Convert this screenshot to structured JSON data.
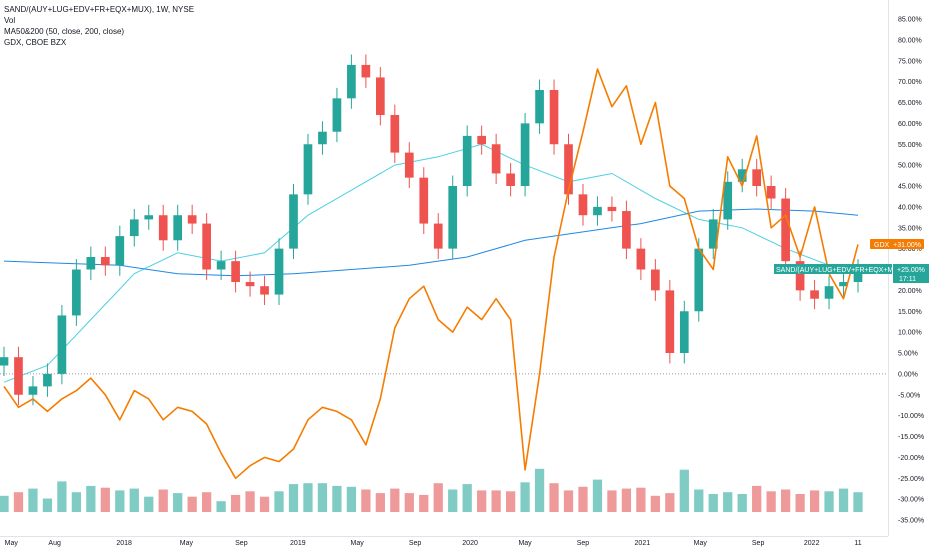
{
  "legend": {
    "symbol_line": "SAND/(AUY+LUG+EDV+FR+EQX+MUX), 1W, NYSE",
    "vol": "Vol",
    "ma": "MA50&200 (50, close, 200, close)",
    "compare": "GDX, CBOE BZX"
  },
  "chart_data": {
    "type": "line",
    "yaxis_unit": "percent",
    "ylim": [
      -37,
      88
    ],
    "y_ticks": [
      85,
      80,
      75,
      70,
      65,
      60,
      55,
      50,
      45,
      40,
      35,
      30,
      25,
      20,
      15,
      10,
      5,
      0,
      -5,
      -10,
      -15,
      -20,
      -25,
      -30,
      -35
    ],
    "y_tick_labels": [
      "85.00%",
      "80.00%",
      "75.00%",
      "70.00%",
      "65.00%",
      "60.00%",
      "55.00%",
      "50.00%",
      "45.00%",
      "40.00%",
      "35.00%",
      "30.00%",
      "25.00%",
      "20.00%",
      "15.00%",
      "10.00%",
      "5.00%",
      "0.00%",
      "-5.00%",
      "-10.00%",
      "-15.00%",
      "-20.00%",
      "-25.00%",
      "-30.00%",
      "-35.00%"
    ],
    "x_ticks": [
      "May",
      "Aug",
      "2018",
      "May",
      "Sep",
      "2019",
      "May",
      "Sep",
      "2020",
      "May",
      "Sep",
      "2021",
      "May",
      "Sep",
      "2022",
      "11"
    ],
    "x_tick_t": [
      0.5,
      3.5,
      8.3,
      12.6,
      16.4,
      20.3,
      24.4,
      28.4,
      32.2,
      36.0,
      40.0,
      44.1,
      48.1,
      52.1,
      55.8,
      59.0
    ],
    "series": [
      {
        "name": "SAND/(AUY+LUG+EDV+FR+EQX+MUX)",
        "style": "candles",
        "up_color": "#26a69a",
        "down_color": "#ef5350",
        "points": [
          [
            0,
            4
          ],
          [
            1,
            -5
          ],
          [
            2,
            -3
          ],
          [
            3,
            0
          ],
          [
            4,
            14
          ],
          [
            5,
            25
          ],
          [
            6,
            28
          ],
          [
            7,
            26
          ],
          [
            8,
            33
          ],
          [
            9,
            37
          ],
          [
            10,
            38
          ],
          [
            11,
            32
          ],
          [
            12,
            38
          ],
          [
            13,
            36
          ],
          [
            14,
            25
          ],
          [
            15,
            27
          ],
          [
            16,
            22
          ],
          [
            17,
            21
          ],
          [
            18,
            19
          ],
          [
            19,
            30
          ],
          [
            20,
            43
          ],
          [
            21,
            55
          ],
          [
            22,
            58
          ],
          [
            23,
            66
          ],
          [
            24,
            74
          ],
          [
            25,
            71
          ],
          [
            26,
            62
          ],
          [
            27,
            53
          ],
          [
            28,
            47
          ],
          [
            29,
            36
          ],
          [
            30,
            30
          ],
          [
            31,
            45
          ],
          [
            32,
            57
          ],
          [
            33,
            55
          ],
          [
            34,
            48
          ],
          [
            35,
            45
          ],
          [
            36,
            60
          ],
          [
            37,
            68
          ],
          [
            38,
            55
          ],
          [
            39,
            43
          ],
          [
            40,
            38
          ],
          [
            41,
            40
          ],
          [
            42,
            39
          ],
          [
            43,
            30
          ],
          [
            44,
            25
          ],
          [
            45,
            20
          ],
          [
            46,
            5
          ],
          [
            47,
            15
          ],
          [
            48,
            30
          ],
          [
            49,
            37
          ],
          [
            50,
            46
          ],
          [
            51,
            49
          ],
          [
            52,
            45
          ],
          [
            53,
            42
          ],
          [
            54,
            27
          ],
          [
            55,
            20
          ],
          [
            56,
            18
          ],
          [
            57,
            21
          ],
          [
            58,
            22
          ],
          [
            59,
            25
          ]
        ]
      },
      {
        "name": "GDX",
        "color": "#f57c00",
        "points": [
          [
            0,
            -3
          ],
          [
            1,
            -8
          ],
          [
            2,
            -6
          ],
          [
            3,
            -9
          ],
          [
            4,
            -6
          ],
          [
            5,
            -4
          ],
          [
            6,
            -1
          ],
          [
            7,
            -5
          ],
          [
            8,
            -11
          ],
          [
            9,
            -4
          ],
          [
            10,
            -6
          ],
          [
            11,
            -11
          ],
          [
            12,
            -8
          ],
          [
            13,
            -9
          ],
          [
            14,
            -12
          ],
          [
            15,
            -19
          ],
          [
            16,
            -25
          ],
          [
            17,
            -22
          ],
          [
            18,
            -20
          ],
          [
            19,
            -21
          ],
          [
            20,
            -18
          ],
          [
            21,
            -11
          ],
          [
            22,
            -8
          ],
          [
            23,
            -9
          ],
          [
            24,
            -11
          ],
          [
            25,
            -17
          ],
          [
            26,
            -6
          ],
          [
            27,
            11
          ],
          [
            28,
            18
          ],
          [
            29,
            21
          ],
          [
            30,
            13
          ],
          [
            31,
            10
          ],
          [
            32,
            16
          ],
          [
            33,
            13
          ],
          [
            34,
            18
          ],
          [
            35,
            13
          ],
          [
            36,
            -23
          ],
          [
            37,
            0
          ],
          [
            38,
            28
          ],
          [
            39,
            44
          ],
          [
            40,
            58
          ],
          [
            41,
            73
          ],
          [
            42,
            64
          ],
          [
            43,
            69
          ],
          [
            44,
            55
          ],
          [
            45,
            65
          ],
          [
            46,
            45
          ],
          [
            47,
            42
          ],
          [
            48,
            30
          ],
          [
            49,
            25
          ],
          [
            50,
            52
          ],
          [
            51,
            45
          ],
          [
            52,
            57
          ],
          [
            53,
            35
          ],
          [
            54,
            38
          ],
          [
            55,
            28
          ],
          [
            56,
            40
          ],
          [
            57,
            24
          ],
          [
            58,
            18
          ],
          [
            59,
            31
          ]
        ]
      },
      {
        "name": "MA50",
        "color": "#4dd0e1",
        "points": [
          [
            0,
            -2
          ],
          [
            3,
            2
          ],
          [
            6,
            13
          ],
          [
            9,
            24
          ],
          [
            12,
            29
          ],
          [
            15,
            27
          ],
          [
            18,
            29
          ],
          [
            21,
            38
          ],
          [
            24,
            44
          ],
          [
            27,
            50
          ],
          [
            30,
            52
          ],
          [
            33,
            55
          ],
          [
            36,
            50
          ],
          [
            39,
            46
          ],
          [
            42,
            48
          ],
          [
            45,
            42
          ],
          [
            48,
            37
          ],
          [
            51,
            35
          ],
          [
            54,
            30
          ],
          [
            57,
            26
          ],
          [
            59,
            25
          ]
        ]
      },
      {
        "name": "MA200",
        "color": "#1e88e5",
        "points": [
          [
            0,
            27
          ],
          [
            4,
            26.5
          ],
          [
            8,
            26
          ],
          [
            12,
            24
          ],
          [
            16,
            23.5
          ],
          [
            20,
            24
          ],
          [
            24,
            25
          ],
          [
            28,
            26
          ],
          [
            32,
            28
          ],
          [
            36,
            32
          ],
          [
            40,
            34
          ],
          [
            44,
            36
          ],
          [
            48,
            39
          ],
          [
            52,
            39.5
          ],
          [
            56,
            39
          ],
          [
            59,
            38
          ]
        ]
      }
    ],
    "volume": {
      "ylim": [
        0,
        100
      ],
      "up_color": "#80cbc4",
      "down_color": "#ef9a9a",
      "values": [
        18,
        22,
        26,
        15,
        34,
        22,
        29,
        27,
        24,
        26,
        17,
        25,
        21,
        17,
        22,
        12,
        19,
        23,
        17,
        23,
        31,
        32,
        32,
        29,
        28,
        25,
        21,
        26,
        21,
        19,
        32,
        25,
        31,
        24,
        24,
        23,
        33,
        48,
        32,
        24,
        28,
        36,
        24,
        26,
        27,
        18,
        21,
        47,
        25,
        20,
        22,
        20,
        29,
        23,
        25,
        20,
        24,
        23,
        26,
        22
      ]
    },
    "last_values": {
      "gdx_label": "GDX",
      "gdx_value": "+31.00%",
      "gdx_color": "#f57c00",
      "sand_label": "SAND/(AUY+LUG+EDV+FR+EQX+MUX)",
      "sand_value": "+25.00%",
      "sand_countdown": "17:11",
      "sand_color": "#26a69a"
    }
  }
}
